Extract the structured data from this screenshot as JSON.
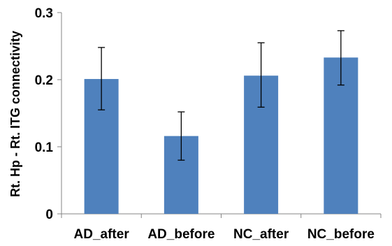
{
  "chart_data": {
    "type": "bar",
    "title": "",
    "xlabel": "",
    "ylabel": "Rt. Hp - Rt. ITG connectivity",
    "categories": [
      "AD_after",
      "AD_before",
      "NC_after",
      "NC_before"
    ],
    "values": [
      0.201,
      0.116,
      0.206,
      0.233
    ],
    "error_bars": [
      {
        "low": 0.155,
        "high": 0.248
      },
      {
        "low": 0.08,
        "high": 0.152
      },
      {
        "low": 0.159,
        "high": 0.255
      },
      {
        "low": 0.192,
        "high": 0.273
      }
    ],
    "ylim": [
      0,
      0.3
    ],
    "yticks": [
      0,
      0.1,
      0.2,
      0.3
    ],
    "ytick_labels": [
      "0",
      "0.1",
      "0.2",
      "0.3"
    ],
    "grid": false,
    "legend": "none",
    "bar_color": "#4f81bd",
    "error_color": "#000000",
    "axis_color": "#868686"
  }
}
